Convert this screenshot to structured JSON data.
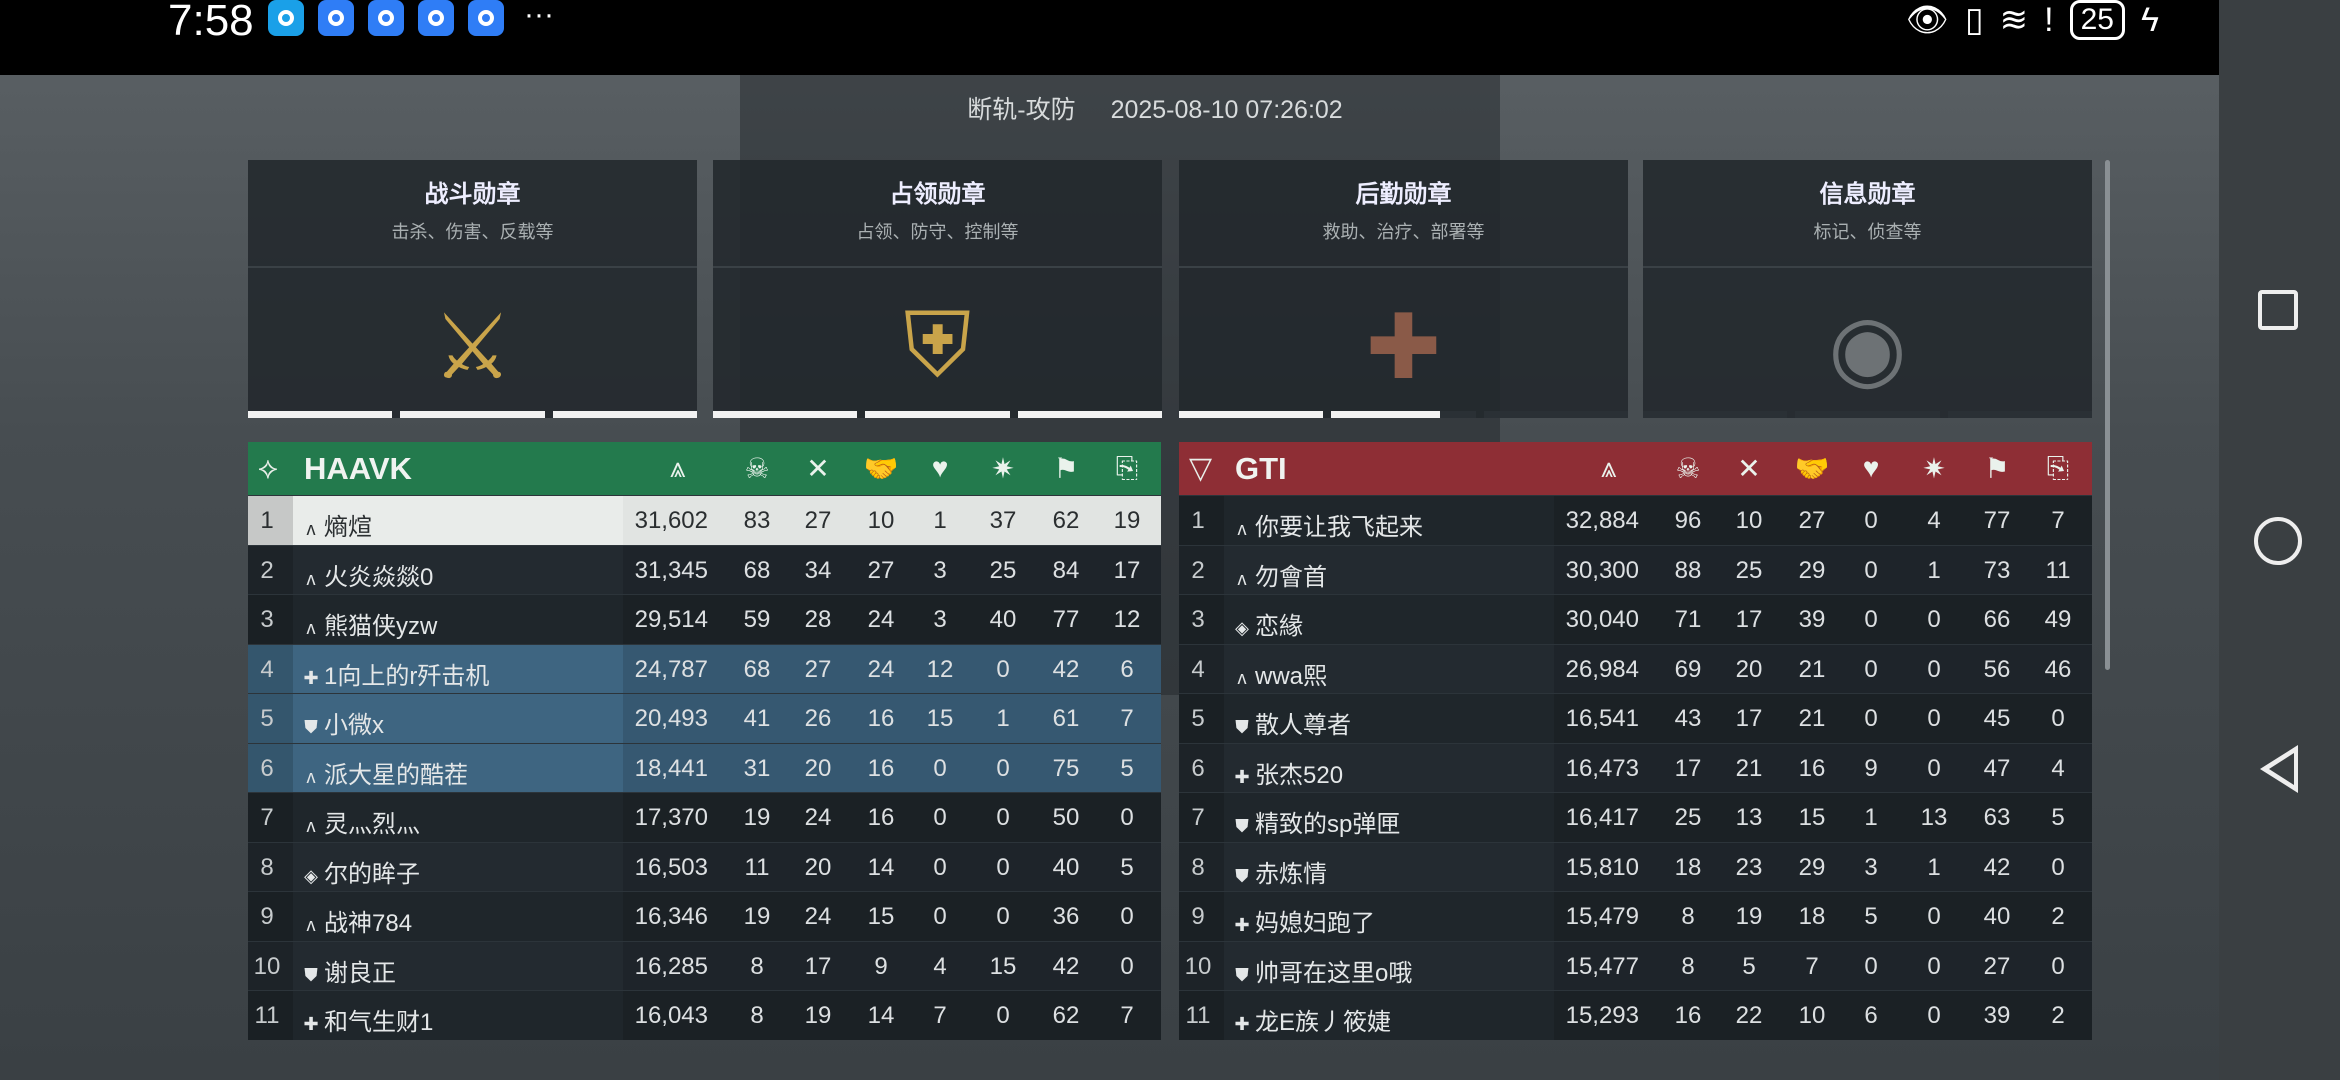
{
  "status_bar": {
    "time": "7:58",
    "notification_count": 5,
    "more": "···",
    "battery": "25",
    "icons": [
      "eye-icon",
      "vibrate-icon",
      "wifi-icon",
      "alert-icon",
      "battery-icon",
      "charging-icon"
    ]
  },
  "match": {
    "mode": "断轨-攻防",
    "datetime": "2025-08-10 07:26:02"
  },
  "medals": [
    {
      "title": "战斗勋章",
      "subtitle": "击杀、伤害、反载等",
      "icon": "combat-medal-icon",
      "progress": [
        1,
        1,
        1
      ],
      "color": "#c9a44a"
    },
    {
      "title": "占领勋章",
      "subtitle": "占领、防守、控制等",
      "icon": "occupation-medal-icon",
      "progress": [
        1,
        1,
        1
      ],
      "color": "#c9a44a"
    },
    {
      "title": "后勤勋章",
      "subtitle": "救助、治疗、部署等",
      "icon": "logistics-medal-icon",
      "progress": [
        1,
        0.75,
        0
      ],
      "color": "#8a5a48"
    },
    {
      "title": "信息勋章",
      "subtitle": "标记、侦查等",
      "icon": "intel-medal-icon",
      "progress": [
        0,
        0,
        0
      ],
      "color": "#6d7275"
    }
  ],
  "columns": [
    "score-icon",
    "kill-icon",
    "death-icon",
    "assist-icon",
    "revive-icon",
    "capture-icon",
    "objective-icon",
    "supply-icon"
  ],
  "teams": [
    {
      "name": "HAAVK",
      "color": "#237a4d",
      "logo": "haavk-logo-icon",
      "rows": [
        [
          "1",
          "assault",
          "熵煊",
          "31,602",
          "83",
          "27",
          "10",
          "1",
          "37",
          "62",
          "19"
        ],
        [
          "2",
          "assault",
          "火炎焱燚0",
          "31,345",
          "68",
          "34",
          "27",
          "3",
          "25",
          "84",
          "17"
        ],
        [
          "3",
          "assault",
          "熊猫侠yzw",
          "29,514",
          "59",
          "28",
          "24",
          "3",
          "40",
          "77",
          "12"
        ],
        [
          "4",
          "medic",
          "1向上的r歼击机",
          "24,787",
          "68",
          "27",
          "24",
          "12",
          "0",
          "42",
          "6"
        ],
        [
          "5",
          "engineer",
          "小微x",
          "20,493",
          "41",
          "26",
          "16",
          "15",
          "1",
          "61",
          "7"
        ],
        [
          "6",
          "assault",
          "派大星的酷茬",
          "18,441",
          "31",
          "20",
          "16",
          "0",
          "0",
          "75",
          "5"
        ],
        [
          "7",
          "assault",
          "灵灬烈灬",
          "17,370",
          "19",
          "24",
          "16",
          "0",
          "0",
          "50",
          "0"
        ],
        [
          "8",
          "recon",
          "尔的眸子",
          "16,503",
          "11",
          "20",
          "14",
          "0",
          "0",
          "40",
          "5"
        ],
        [
          "9",
          "assault",
          "战神784",
          "16,346",
          "19",
          "24",
          "15",
          "0",
          "0",
          "36",
          "0"
        ],
        [
          "10",
          "engineer",
          "谢良正",
          "16,285",
          "8",
          "17",
          "9",
          "4",
          "15",
          "42",
          "0"
        ],
        [
          "11",
          "medic",
          "和气生财1",
          "16,043",
          "8",
          "19",
          "14",
          "7",
          "0",
          "62",
          "7"
        ]
      ]
    },
    {
      "name": "GTI",
      "color": "#8e2e35",
      "logo": "gti-logo-icon",
      "rows": [
        [
          "1",
          "assault",
          "你要让我飞起来",
          "32,884",
          "96",
          "10",
          "27",
          "0",
          "4",
          "77",
          "7"
        ],
        [
          "2",
          "assault",
          "勿會首",
          "30,300",
          "88",
          "25",
          "29",
          "0",
          "1",
          "73",
          "11"
        ],
        [
          "3",
          "recon",
          "恋緣",
          "30,040",
          "71",
          "17",
          "39",
          "0",
          "0",
          "66",
          "49"
        ],
        [
          "4",
          "assault",
          "wwa熙",
          "26,984",
          "69",
          "20",
          "21",
          "0",
          "0",
          "56",
          "46"
        ],
        [
          "5",
          "engineer",
          "散人尊者",
          "16,541",
          "43",
          "17",
          "21",
          "0",
          "0",
          "45",
          "0"
        ],
        [
          "6",
          "medic",
          "张杰520",
          "16,473",
          "17",
          "21",
          "16",
          "9",
          "0",
          "47",
          "4"
        ],
        [
          "7",
          "engineer",
          "精致的sp弹匣",
          "16,417",
          "25",
          "13",
          "15",
          "1",
          "13",
          "63",
          "5"
        ],
        [
          "8",
          "engineer",
          "赤炼情",
          "15,810",
          "18",
          "23",
          "29",
          "3",
          "1",
          "42",
          "0"
        ],
        [
          "9",
          "medic",
          "妈媳妇跑了",
          "15,479",
          "8",
          "19",
          "18",
          "5",
          "0",
          "40",
          "2"
        ],
        [
          "10",
          "engineer",
          "帅哥在这里o哦",
          "15,477",
          "8",
          "5",
          "7",
          "0",
          "0",
          "27",
          "0"
        ],
        [
          "11",
          "medic",
          "龙E族丿筱婕",
          "15,293",
          "16",
          "22",
          "10",
          "6",
          "0",
          "39",
          "2"
        ]
      ]
    }
  ],
  "highlight": {
    "self_row": 1,
    "squad_rows": [
      4,
      5,
      6
    ]
  }
}
